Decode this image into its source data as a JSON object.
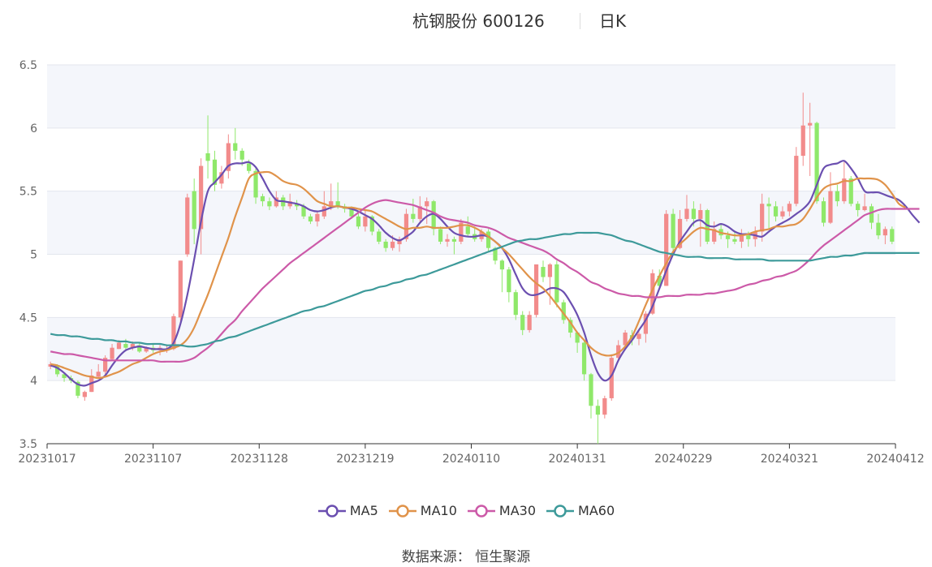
{
  "header": {
    "title": "杭钢股份 600126",
    "period": "日K"
  },
  "source": "数据来源：  恒生聚源",
  "chart_data": {
    "type": "candlestick",
    "ylim": [
      3.5,
      6.5
    ],
    "y_ticks": [
      "3.5",
      "4",
      "4.5",
      "5",
      "5.5",
      "6",
      "6.5"
    ],
    "x_ticks": [
      "20231017",
      "20231107",
      "20231128",
      "20231219",
      "20240110",
      "20240131",
      "20240229",
      "20240321",
      "20240412"
    ],
    "colors": {
      "up": "#f28b8b",
      "down": "#8fe86a",
      "MA5": "#6b4fb0",
      "MA10": "#e0934a",
      "MA30": "#cc5aa8",
      "MA60": "#3d9a9a"
    },
    "candles": [
      [
        4.11,
        4.13,
        4.15,
        4.09
      ],
      [
        4.12,
        4.05,
        4.13,
        4.03
      ],
      [
        4.05,
        4.02,
        4.06,
        3.99
      ],
      [
        4.02,
        4.0,
        4.04,
        3.98
      ],
      [
        3.99,
        3.88,
        4.0,
        3.86
      ],
      [
        3.87,
        3.91,
        3.92,
        3.84
      ],
      [
        3.91,
        4.04,
        4.09,
        3.91
      ],
      [
        4.03,
        4.07,
        4.13,
        4.02
      ],
      [
        4.07,
        4.18,
        4.2,
        4.05
      ],
      [
        4.17,
        4.26,
        4.29,
        4.16
      ],
      [
        4.25,
        4.3,
        4.32,
        4.25
      ],
      [
        4.29,
        4.26,
        4.33,
        4.24
      ],
      [
        4.26,
        4.29,
        4.31,
        4.24
      ],
      [
        4.28,
        4.23,
        4.3,
        4.22
      ],
      [
        4.23,
        4.26,
        4.27,
        4.22
      ],
      [
        4.26,
        4.24,
        4.29,
        4.22
      ],
      [
        4.24,
        4.26,
        4.28,
        4.2
      ],
      [
        4.25,
        4.25,
        4.28,
        4.22
      ],
      [
        4.25,
        4.51,
        4.53,
        4.24
      ],
      [
        4.5,
        4.95,
        4.95,
        4.45
      ],
      [
        5.0,
        5.45,
        5.48,
        4.98
      ],
      [
        5.5,
        5.2,
        5.6,
        5.08
      ],
      [
        5.2,
        5.7,
        5.76,
        5.0
      ],
      [
        5.8,
        5.74,
        6.1,
        5.6
      ],
      [
        5.75,
        5.55,
        5.82,
        5.5
      ],
      [
        5.56,
        5.65,
        5.7,
        5.52
      ],
      [
        5.66,
        5.88,
        5.95,
        5.6
      ],
      [
        5.88,
        5.82,
        6.0,
        5.75
      ],
      [
        5.82,
        5.75,
        5.84,
        5.7
      ],
      [
        5.72,
        5.66,
        5.75,
        5.64
      ],
      [
        5.66,
        5.45,
        5.68,
        5.4
      ],
      [
        5.46,
        5.42,
        5.48,
        5.38
      ],
      [
        5.42,
        5.38,
        5.45,
        5.35
      ],
      [
        5.38,
        5.45,
        5.5,
        5.37
      ],
      [
        5.45,
        5.38,
        5.47,
        5.35
      ],
      [
        5.38,
        5.42,
        5.48,
        5.36
      ],
      [
        5.4,
        5.38,
        5.43,
        5.35
      ],
      [
        5.38,
        5.3,
        5.4,
        5.28
      ],
      [
        5.3,
        5.26,
        5.32,
        5.24
      ],
      [
        5.26,
        5.32,
        5.34,
        5.22
      ],
      [
        5.3,
        5.38,
        5.5,
        5.28
      ],
      [
        5.38,
        5.42,
        5.56,
        5.35
      ],
      [
        5.42,
        5.38,
        5.57,
        5.36
      ],
      [
        5.38,
        5.36,
        5.4,
        5.33
      ],
      [
        5.36,
        5.3,
        5.38,
        5.28
      ],
      [
        5.3,
        5.22,
        5.33,
        5.2
      ],
      [
        5.22,
        5.3,
        5.35,
        5.18
      ],
      [
        5.3,
        5.18,
        5.31,
        5.15
      ],
      [
        5.18,
        5.1,
        5.2,
        5.08
      ],
      [
        5.1,
        5.05,
        5.12,
        5.02
      ],
      [
        5.05,
        5.1,
        5.15,
        5.03
      ],
      [
        5.08,
        5.12,
        5.14,
        5.02
      ],
      [
        5.12,
        5.32,
        5.36,
        5.1
      ],
      [
        5.32,
        5.28,
        5.44,
        5.25
      ],
      [
        5.28,
        5.38,
        5.46,
        5.26
      ],
      [
        5.38,
        5.42,
        5.45,
        5.24
      ],
      [
        5.42,
        5.2,
        5.43,
        5.15
      ],
      [
        5.2,
        5.1,
        5.22,
        5.08
      ],
      [
        5.1,
        5.12,
        5.16,
        5.06
      ],
      [
        5.12,
        5.1,
        5.14,
        5.0
      ],
      [
        5.1,
        5.25,
        5.28,
        5.08
      ],
      [
        5.22,
        5.16,
        5.3,
        5.14
      ],
      [
        5.16,
        5.12,
        5.22,
        5.1
      ],
      [
        5.12,
        5.18,
        5.2,
        5.1
      ],
      [
        5.18,
        5.05,
        5.2,
        5.02
      ],
      [
        5.05,
        4.95,
        5.06,
        4.92
      ],
      [
        4.95,
        4.88,
        4.96,
        4.7
      ],
      [
        4.88,
        4.7,
        4.9,
        4.62
      ],
      [
        4.7,
        4.52,
        4.72,
        4.48
      ],
      [
        4.52,
        4.4,
        4.55,
        4.36
      ],
      [
        4.4,
        4.52,
        4.55,
        4.38
      ],
      [
        4.52,
        4.92,
        4.92,
        4.5
      ],
      [
        4.9,
        4.82,
        4.95,
        4.78
      ],
      [
        4.82,
        4.92,
        4.93,
        4.6
      ],
      [
        4.92,
        4.62,
        4.95,
        4.58
      ],
      [
        4.62,
        4.48,
        4.64,
        4.45
      ],
      [
        4.48,
        4.38,
        4.5,
        4.34
      ],
      [
        4.38,
        4.3,
        4.39,
        4.22
      ],
      [
        4.3,
        4.05,
        4.32,
        4.0
      ],
      [
        4.05,
        3.8,
        4.06,
        3.7
      ],
      [
        3.8,
        3.73,
        3.85,
        3.5
      ],
      [
        3.73,
        3.86,
        3.88,
        3.7
      ],
      [
        3.86,
        4.18,
        4.2,
        3.84
      ],
      [
        4.18,
        4.28,
        4.32,
        4.15
      ],
      [
        4.28,
        4.38,
        4.4,
        4.26
      ],
      [
        4.36,
        4.33,
        4.4,
        4.28
      ],
      [
        4.33,
        4.37,
        4.4,
        4.28
      ],
      [
        4.37,
        4.53,
        4.55,
        4.3
      ],
      [
        4.53,
        4.85,
        4.88,
        4.52
      ],
      [
        4.83,
        4.75,
        4.88,
        4.72
      ],
      [
        4.75,
        5.32,
        5.35,
        4.75
      ],
      [
        5.32,
        5.05,
        5.36,
        5.02
      ],
      [
        5.05,
        5.28,
        5.35,
        5.04
      ],
      [
        5.28,
        5.36,
        5.47,
        5.26
      ],
      [
        5.36,
        5.28,
        5.42,
        5.22
      ],
      [
        5.28,
        5.35,
        5.4,
        5.06
      ],
      [
        5.35,
        5.1,
        5.36,
        5.08
      ],
      [
        5.1,
        5.2,
        5.26,
        5.08
      ],
      [
        5.2,
        5.15,
        5.24,
        5.12
      ],
      [
        5.15,
        5.12,
        5.18,
        5.05
      ],
      [
        5.12,
        5.1,
        5.18,
        5.08
      ],
      [
        5.1,
        5.15,
        5.2,
        5.05
      ],
      [
        5.15,
        5.12,
        5.18,
        5.06
      ],
      [
        5.12,
        5.18,
        5.22,
        5.06
      ],
      [
        5.18,
        5.4,
        5.48,
        5.1
      ],
      [
        5.4,
        5.38,
        5.45,
        5.2
      ],
      [
        5.38,
        5.3,
        5.42,
        5.26
      ],
      [
        5.3,
        5.34,
        5.38,
        5.28
      ],
      [
        5.34,
        5.4,
        5.42,
        5.3
      ],
      [
        5.4,
        5.78,
        5.85,
        5.38
      ],
      [
        5.78,
        6.02,
        6.28,
        5.7
      ],
      [
        6.02,
        6.04,
        6.2,
        5.62
      ],
      [
        6.04,
        5.42,
        6.05,
        5.4
      ],
      [
        5.42,
        5.25,
        5.45,
        5.22
      ],
      [
        5.25,
        5.5,
        5.65,
        5.24
      ],
      [
        5.5,
        5.42,
        5.55,
        5.38
      ],
      [
        5.42,
        5.6,
        5.73,
        5.4
      ],
      [
        5.6,
        5.4,
        5.62,
        5.38
      ],
      [
        5.4,
        5.35,
        5.42,
        5.3
      ],
      [
        5.35,
        5.38,
        5.48,
        5.34
      ],
      [
        5.38,
        5.25,
        5.4,
        5.2
      ],
      [
        5.25,
        5.15,
        5.32,
        5.12
      ],
      [
        5.15,
        5.2,
        5.22,
        5.08
      ],
      [
        5.2,
        5.1,
        5.22,
        5.08
      ]
    ],
    "series": [
      {
        "name": "MA5",
        "values": [
          4.12,
          4.1,
          4.06,
          4.01,
          3.97,
          3.96,
          3.98,
          4.0,
          4.04,
          4.12,
          4.19,
          4.24,
          4.26,
          4.27,
          4.26,
          4.25,
          4.25,
          4.25,
          4.3,
          4.45,
          4.68,
          4.96,
          5.26,
          5.5,
          5.57,
          5.63,
          5.7,
          5.72,
          5.72,
          5.73,
          5.69,
          5.6,
          5.5,
          5.43,
          5.42,
          5.41,
          5.4,
          5.38,
          5.35,
          5.34,
          5.35,
          5.37,
          5.38,
          5.37,
          5.36,
          5.34,
          5.31,
          5.28,
          5.23,
          5.17,
          5.13,
          5.11,
          5.14,
          5.18,
          5.25,
          5.3,
          5.32,
          5.28,
          5.22,
          5.17,
          5.15,
          5.14,
          5.14,
          5.15,
          5.14,
          5.1,
          5.05,
          4.96,
          4.84,
          4.73,
          4.68,
          4.68,
          4.7,
          4.73,
          4.73,
          4.7,
          4.62,
          4.52,
          4.38,
          4.2,
          4.06,
          4.0,
          4.04,
          4.16,
          4.25,
          4.32,
          4.4,
          4.48,
          4.59,
          4.73,
          4.87,
          5.0,
          5.1,
          5.18,
          5.25,
          5.27,
          5.23,
          5.22,
          5.24,
          5.22,
          5.18,
          5.16,
          5.16,
          5.15,
          5.14,
          5.18,
          5.22,
          5.25,
          5.28,
          5.32,
          5.36,
          5.42,
          5.55,
          5.68,
          5.71,
          5.72,
          5.74,
          5.68,
          5.6,
          5.5,
          5.49,
          5.49,
          5.47,
          5.45,
          5.43,
          5.38,
          5.31,
          5.25
        ]
      },
      {
        "name": "MA10",
        "values": [
          4.13,
          4.12,
          4.1,
          4.08,
          4.06,
          4.04,
          4.03,
          4.02,
          4.03,
          4.05,
          4.07,
          4.1,
          4.13,
          4.15,
          4.18,
          4.21,
          4.23,
          4.24,
          4.26,
          4.28,
          4.33,
          4.42,
          4.55,
          4.68,
          4.83,
          4.98,
          5.13,
          5.3,
          5.45,
          5.6,
          5.64,
          5.65,
          5.65,
          5.62,
          5.58,
          5.56,
          5.55,
          5.52,
          5.47,
          5.42,
          5.4,
          5.38,
          5.38,
          5.37,
          5.37,
          5.36,
          5.35,
          5.34,
          5.31,
          5.28,
          5.25,
          5.22,
          5.2,
          5.21,
          5.21,
          5.22,
          5.21,
          5.21,
          5.21,
          5.22,
          5.23,
          5.23,
          5.21,
          5.18,
          5.14,
          5.1,
          5.05,
          5.0,
          4.94,
          4.88,
          4.82,
          4.77,
          4.73,
          4.67,
          4.6,
          4.53,
          4.46,
          4.38,
          4.32,
          4.26,
          4.22,
          4.2,
          4.2,
          4.22,
          4.27,
          4.35,
          4.47,
          4.6,
          4.72,
          4.83,
          4.93,
          5.02,
          5.08,
          5.13,
          5.18,
          5.21,
          5.2,
          5.19,
          5.17,
          5.16,
          5.15,
          5.15,
          5.16,
          5.18,
          5.19,
          5.2,
          5.22,
          5.22,
          5.23,
          5.24,
          5.28,
          5.36,
          5.45,
          5.52,
          5.55,
          5.56,
          5.58,
          5.58,
          5.6,
          5.6,
          5.6,
          5.59,
          5.55,
          5.48,
          5.4,
          5.37
        ]
      },
      {
        "name": "MA30",
        "values": [
          4.23,
          4.22,
          4.21,
          4.21,
          4.2,
          4.19,
          4.18,
          4.17,
          4.16,
          4.16,
          4.16,
          4.16,
          4.16,
          4.16,
          4.16,
          4.16,
          4.15,
          4.15,
          4.15,
          4.15,
          4.16,
          4.18,
          4.22,
          4.26,
          4.31,
          4.37,
          4.43,
          4.48,
          4.55,
          4.61,
          4.67,
          4.73,
          4.78,
          4.83,
          4.88,
          4.93,
          4.97,
          5.01,
          5.05,
          5.09,
          5.13,
          5.17,
          5.21,
          5.25,
          5.29,
          5.33,
          5.37,
          5.4,
          5.42,
          5.43,
          5.42,
          5.41,
          5.4,
          5.39,
          5.37,
          5.35,
          5.33,
          5.3,
          5.28,
          5.27,
          5.26,
          5.25,
          5.23,
          5.22,
          5.21,
          5.19,
          5.16,
          5.13,
          5.11,
          5.09,
          5.07,
          5.05,
          5.03,
          5.0,
          4.96,
          4.93,
          4.89,
          4.86,
          4.82,
          4.78,
          4.76,
          4.73,
          4.71,
          4.69,
          4.68,
          4.67,
          4.67,
          4.66,
          4.66,
          4.66,
          4.67,
          4.67,
          4.67,
          4.68,
          4.68,
          4.68,
          4.69,
          4.69,
          4.7,
          4.71,
          4.72,
          4.74,
          4.76,
          4.77,
          4.79,
          4.8,
          4.82,
          4.83,
          4.85,
          4.87,
          4.91,
          4.96,
          5.02,
          5.07,
          5.11,
          5.15,
          5.19,
          5.23,
          5.27,
          5.31,
          5.33,
          5.35,
          5.36,
          5.36,
          5.36,
          5.36,
          5.36,
          5.36
        ]
      },
      {
        "name": "MA60",
        "values": [
          4.37,
          4.36,
          4.36,
          4.35,
          4.35,
          4.34,
          4.33,
          4.33,
          4.32,
          4.32,
          4.31,
          4.31,
          4.3,
          4.3,
          4.29,
          4.29,
          4.29,
          4.28,
          4.28,
          4.28,
          4.27,
          4.27,
          4.28,
          4.29,
          4.31,
          4.32,
          4.34,
          4.35,
          4.37,
          4.39,
          4.41,
          4.43,
          4.45,
          4.47,
          4.49,
          4.51,
          4.53,
          4.55,
          4.56,
          4.58,
          4.59,
          4.61,
          4.63,
          4.65,
          4.67,
          4.69,
          4.71,
          4.72,
          4.74,
          4.75,
          4.77,
          4.78,
          4.8,
          4.81,
          4.83,
          4.84,
          4.86,
          4.88,
          4.9,
          4.92,
          4.94,
          4.96,
          4.98,
          5.0,
          5.02,
          5.04,
          5.06,
          5.08,
          5.1,
          5.11,
          5.12,
          5.12,
          5.13,
          5.14,
          5.15,
          5.16,
          5.16,
          5.17,
          5.17,
          5.17,
          5.17,
          5.16,
          5.15,
          5.13,
          5.11,
          5.1,
          5.08,
          5.06,
          5.04,
          5.02,
          5.01,
          5.0,
          4.99,
          4.98,
          4.98,
          4.98,
          4.97,
          4.97,
          4.97,
          4.97,
          4.96,
          4.96,
          4.96,
          4.96,
          4.96,
          4.95,
          4.95,
          4.95,
          4.95,
          4.95,
          4.95,
          4.95,
          4.96,
          4.97,
          4.98,
          4.98,
          4.99,
          4.99,
          5.0,
          5.01,
          5.01,
          5.01,
          5.01,
          5.01,
          5.01,
          5.01,
          5.01,
          5.01
        ]
      }
    ]
  }
}
